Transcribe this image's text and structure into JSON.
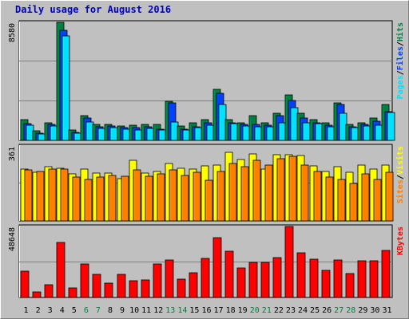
{
  "title": "Daily usage for August 2016",
  "colors": {
    "background": "#c0c0c0",
    "hits": "#008040",
    "files": "#0040ff",
    "pages": "#00e0ff",
    "visits": "#ffff00",
    "sites": "#ff8000",
    "kbytes": "#ff0000",
    "weekend_label": "#008040",
    "title": "#0000c0"
  },
  "chart_data": [
    {
      "type": "bar",
      "panel": "top",
      "ymax_label": "8580",
      "ylim": [
        0,
        8580
      ],
      "legend": [
        {
          "label": "Pages",
          "color": "#00e0ff"
        },
        {
          "label": "/",
          "color": "#000000"
        },
        {
          "label": "Files",
          "color": "#0040ff"
        },
        {
          "label": "/",
          "color": "#000000"
        },
        {
          "label": "Hits",
          "color": "#008040"
        }
      ],
      "categories": [
        "1",
        "2",
        "3",
        "4",
        "5",
        "6",
        "7",
        "8",
        "9",
        "10",
        "11",
        "12",
        "13",
        "14",
        "15",
        "16",
        "17",
        "18",
        "19",
        "20",
        "21",
        "22",
        "23",
        "24",
        "25",
        "26",
        "27",
        "28",
        "29",
        "30",
        "31"
      ],
      "series": [
        {
          "name": "Hits",
          "values": [
            1480,
            680,
            1300,
            8580,
            780,
            1800,
            1150,
            1150,
            1050,
            1100,
            1150,
            1150,
            2850,
            1050,
            1250,
            1500,
            3700,
            1480,
            1300,
            1800,
            1300,
            2000,
            3300,
            2000,
            1480,
            1300,
            2720,
            1150,
            1300,
            1600,
            2600
          ]
        },
        {
          "name": "Files",
          "values": [
            1200,
            500,
            1150,
            8000,
            580,
            1600,
            960,
            1040,
            900,
            900,
            960,
            800,
            2700,
            830,
            1000,
            1250,
            3400,
            1300,
            1160,
            1150,
            1100,
            1800,
            2900,
            1600,
            1300,
            1130,
            2600,
            1000,
            1150,
            1400,
            2100
          ]
        },
        {
          "name": "Pages",
          "values": [
            1100,
            450,
            1050,
            7600,
            500,
            1350,
            850,
            930,
            800,
            780,
            850,
            750,
            1350,
            750,
            900,
            1100,
            2600,
            1200,
            1070,
            1000,
            1000,
            1300,
            2400,
            1300,
            1200,
            1000,
            2000,
            900,
            1050,
            1100,
            2050
          ]
        }
      ]
    },
    {
      "type": "bar",
      "panel": "middle",
      "ymax_label": "361",
      "ylim": [
        0,
        361
      ],
      "legend": [
        {
          "label": "Sites",
          "color": "#ff8000"
        },
        {
          "label": "/",
          "color": "#000000"
        },
        {
          "label": "Visits",
          "color": "#ffff00"
        }
      ],
      "categories": [
        "1",
        "2",
        "3",
        "4",
        "5",
        "6",
        "7",
        "8",
        "9",
        "10",
        "11",
        "12",
        "13",
        "14",
        "15",
        "16",
        "17",
        "18",
        "19",
        "20",
        "21",
        "22",
        "23",
        "24",
        "25",
        "26",
        "27",
        "28",
        "29",
        "30",
        "31"
      ],
      "series": [
        {
          "name": "Visits",
          "values": [
            250,
            235,
            260,
            255,
            225,
            250,
            230,
            230,
            205,
            292,
            230,
            240,
            275,
            255,
            250,
            265,
            270,
            330,
            295,
            323,
            250,
            320,
            320,
            315,
            265,
            240,
            260,
            235,
            270,
            250,
            269
          ]
        },
        {
          "name": "Sites",
          "values": [
            245,
            240,
            250,
            250,
            210,
            200,
            210,
            220,
            215,
            245,
            215,
            225,
            245,
            220,
            235,
            195,
            240,
            275,
            260,
            290,
            270,
            300,
            310,
            270,
            240,
            210,
            200,
            180,
            225,
            200,
            235
          ]
        }
      ]
    },
    {
      "type": "bar",
      "panel": "bottom",
      "ymax_label": "48648",
      "ylim": [
        0,
        48648
      ],
      "legend": [
        {
          "label": "KBytes",
          "color": "#ff0000"
        }
      ],
      "categories": [
        "1",
        "2",
        "3",
        "4",
        "5",
        "6",
        "7",
        "8",
        "9",
        "10",
        "11",
        "12",
        "13",
        "14",
        "15",
        "16",
        "17",
        "18",
        "19",
        "20",
        "21",
        "22",
        "23",
        "24",
        "25",
        "26",
        "27",
        "28",
        "29",
        "30",
        "31"
      ],
      "series": [
        {
          "name": "KBytes",
          "values": [
            18000,
            3800,
            9000,
            37500,
            6500,
            23000,
            16000,
            10000,
            16000,
            11500,
            12000,
            23000,
            25500,
            12500,
            17000,
            27000,
            41000,
            31500,
            20000,
            24000,
            24000,
            27500,
            48648,
            30500,
            26000,
            18500,
            25500,
            16500,
            25000,
            25000,
            32500
          ]
        }
      ]
    }
  ],
  "x_labels": [
    {
      "label": "1",
      "weekend": false
    },
    {
      "label": "2",
      "weekend": false
    },
    {
      "label": "3",
      "weekend": false
    },
    {
      "label": "4",
      "weekend": false
    },
    {
      "label": "5",
      "weekend": false
    },
    {
      "label": "6",
      "weekend": true
    },
    {
      "label": "7",
      "weekend": true
    },
    {
      "label": "8",
      "weekend": false
    },
    {
      "label": "9",
      "weekend": false
    },
    {
      "label": "10",
      "weekend": false
    },
    {
      "label": "11",
      "weekend": false
    },
    {
      "label": "12",
      "weekend": false
    },
    {
      "label": "13",
      "weekend": true
    },
    {
      "label": "14",
      "weekend": true
    },
    {
      "label": "15",
      "weekend": false
    },
    {
      "label": "16",
      "weekend": false
    },
    {
      "label": "17",
      "weekend": false
    },
    {
      "label": "18",
      "weekend": false
    },
    {
      "label": "19",
      "weekend": false
    },
    {
      "label": "20",
      "weekend": true
    },
    {
      "label": "21",
      "weekend": true
    },
    {
      "label": "22",
      "weekend": false
    },
    {
      "label": "23",
      "weekend": false
    },
    {
      "label": "24",
      "weekend": false
    },
    {
      "label": "25",
      "weekend": false
    },
    {
      "label": "26",
      "weekend": false
    },
    {
      "label": "27",
      "weekend": true
    },
    {
      "label": "28",
      "weekend": true
    },
    {
      "label": "29",
      "weekend": false
    },
    {
      "label": "30",
      "weekend": false
    },
    {
      "label": "31",
      "weekend": false
    }
  ]
}
